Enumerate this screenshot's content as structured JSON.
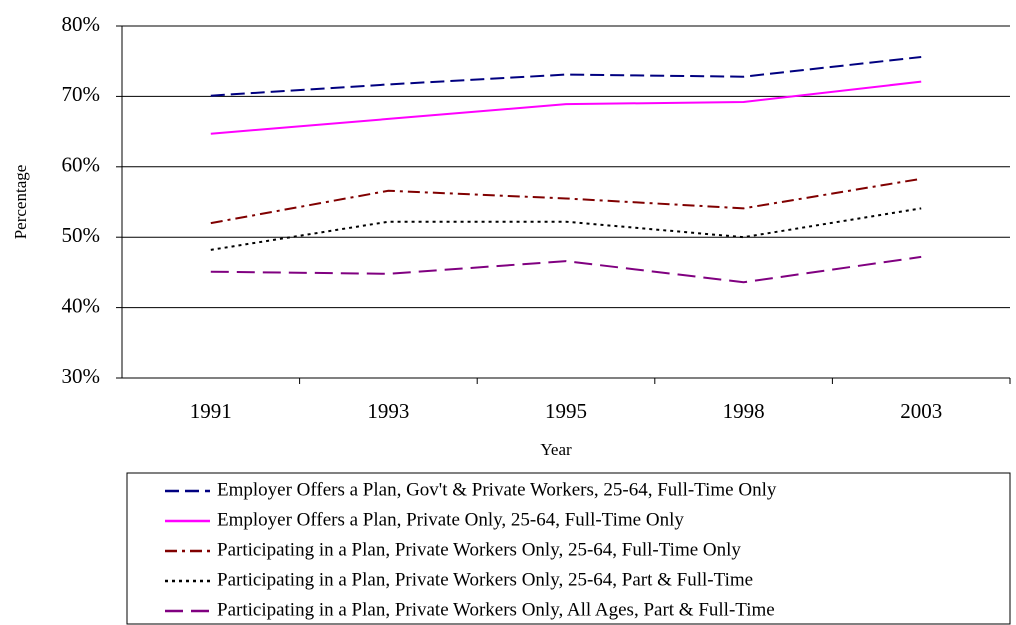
{
  "chart_data": {
    "type": "line",
    "x_label": "Year",
    "y_label": "Percentage",
    "categories": [
      "1991",
      "1993",
      "1995",
      "1998",
      "2003"
    ],
    "ylim": [
      30,
      80
    ],
    "yticks": [
      {
        "value": 30,
        "label": "30%"
      },
      {
        "value": 40,
        "label": "40%"
      },
      {
        "value": 50,
        "label": "50%"
      },
      {
        "value": 60,
        "label": "60%"
      },
      {
        "value": 70,
        "label": "70%"
      },
      {
        "value": 80,
        "label": "80%"
      }
    ],
    "grid": true,
    "series": [
      {
        "name": "Employer Offers a Plan, Gov't & Private Workers, 25-64, Full-Time Only",
        "color": "#000080",
        "style": "dashed",
        "values": [
          70.1,
          71.7,
          73.1,
          72.8,
          75.6
        ]
      },
      {
        "name": "Employer Offers a Plan, Private Only, 25-64, Full-Time Only",
        "color": "#ff00ff",
        "style": "solid",
        "values": [
          64.7,
          66.8,
          68.9,
          69.2,
          72.1
        ]
      },
      {
        "name": "Participating in a Plan, Private Workers Only, 25-64, Full-Time Only",
        "color": "#800000",
        "style": "dashdot",
        "values": [
          52.0,
          56.6,
          55.5,
          54.1,
          58.3
        ]
      },
      {
        "name": "Participating in a Plan, Private Workers Only, 25-64, Part & Full-Time",
        "color": "#000000",
        "style": "dotted",
        "values": [
          48.2,
          52.2,
          52.2,
          50.0,
          54.1
        ]
      },
      {
        "name": "Participating in a Plan, Private Workers Only, All Ages, Part & Full-Time",
        "color": "#800080",
        "style": "longdash",
        "values": [
          45.1,
          44.8,
          46.6,
          43.6,
          47.2
        ]
      }
    ]
  }
}
